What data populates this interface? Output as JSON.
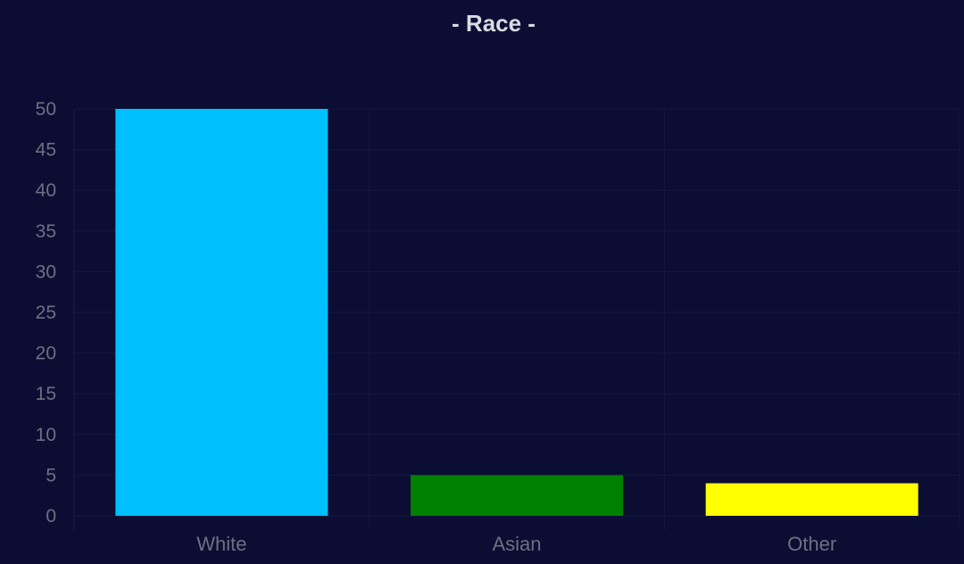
{
  "chart_data": {
    "type": "bar",
    "title": "- Race -",
    "categories": [
      "White",
      "Asian",
      "Other"
    ],
    "values": [
      50,
      5,
      4
    ],
    "colors": [
      "#00bfff",
      "#008000",
      "#ffff00"
    ],
    "ylim": [
      0,
      50
    ],
    "yticks": [
      0,
      5,
      10,
      15,
      20,
      25,
      30,
      35,
      40,
      45,
      50
    ],
    "grid": true,
    "background": "#0b0d33"
  }
}
